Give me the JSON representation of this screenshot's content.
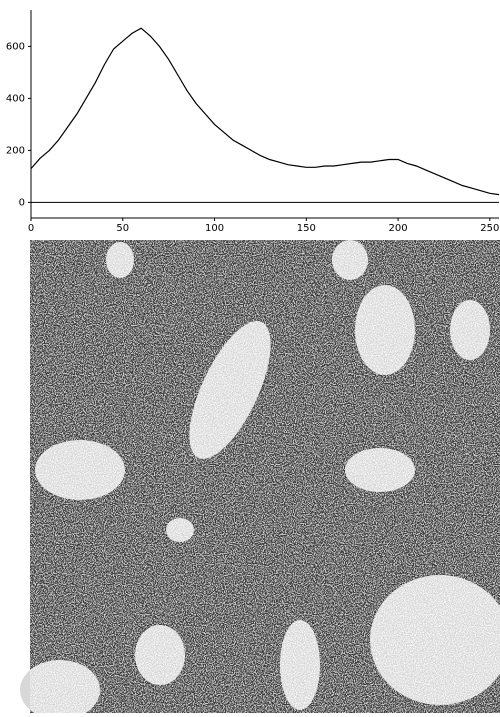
{
  "chart_data": {
    "type": "line",
    "x": [
      0,
      5,
      10,
      15,
      20,
      25,
      30,
      35,
      40,
      45,
      50,
      55,
      60,
      65,
      70,
      75,
      80,
      85,
      90,
      95,
      100,
      105,
      110,
      115,
      120,
      125,
      130,
      135,
      140,
      145,
      150,
      155,
      160,
      165,
      170,
      175,
      180,
      185,
      190,
      195,
      200,
      205,
      210,
      215,
      220,
      225,
      230,
      235,
      240,
      245,
      250,
      255
    ],
    "series": [
      {
        "color": "#000000",
        "values": [
          130,
          170,
          200,
          240,
          290,
          340,
          400,
          460,
          530,
          590,
          620,
          650,
          670,
          640,
          600,
          550,
          490,
          430,
          380,
          340,
          300,
          270,
          240,
          220,
          200,
          180,
          165,
          155,
          145,
          140,
          135,
          135,
          140,
          140,
          145,
          150,
          155,
          155,
          160,
          165,
          165,
          150,
          140,
          125,
          110,
          95,
          80,
          65,
          55,
          45,
          35,
          30
        ]
      }
    ],
    "xlim": [
      0,
      255
    ],
    "xticks": [
      0,
      50,
      100,
      150,
      200,
      250
    ],
    "ylim": [
      -60,
      740
    ],
    "yticks": [
      0,
      200,
      400,
      600
    ],
    "grid": false
  }
}
